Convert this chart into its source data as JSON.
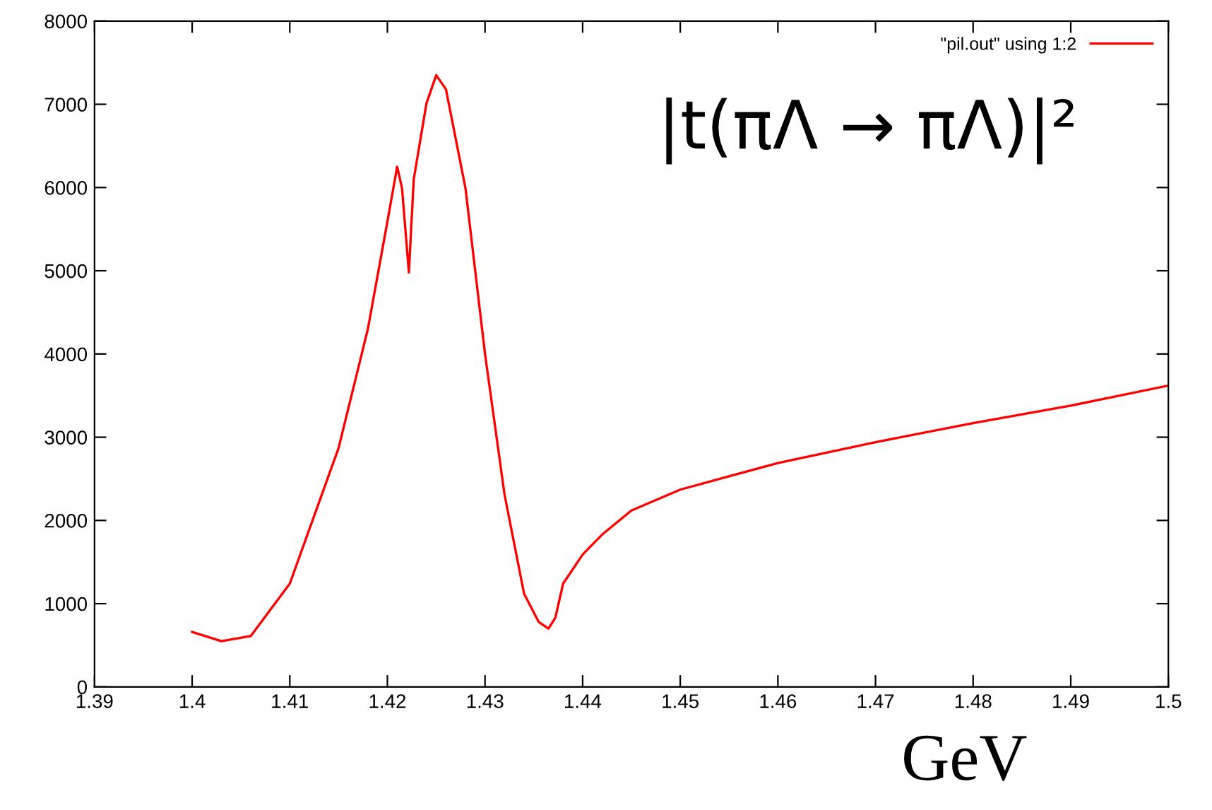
{
  "chart_data": {
    "type": "line",
    "xlabel": "GeV",
    "annotations": [
      "|t(πΛ → πΛ)|²"
    ],
    "series": [
      {
        "name": "\"pil.out\" using 1:2",
        "color": "#ff0000",
        "x": [
          1.4,
          1.403,
          1.406,
          1.41,
          1.415,
          1.418,
          1.42,
          1.421,
          1.4215,
          1.4222,
          1.4227,
          1.424,
          1.425,
          1.426,
          1.428,
          1.43,
          1.432,
          1.434,
          1.4355,
          1.4365,
          1.4372,
          1.438,
          1.44,
          1.442,
          1.445,
          1.45,
          1.46,
          1.47,
          1.48,
          1.49,
          1.5
        ],
        "values": [
          660,
          550,
          610,
          1240,
          2870,
          4300,
          5590,
          6250,
          5990,
          4980,
          6100,
          7010,
          7350,
          7180,
          5990,
          4000,
          2310,
          1120,
          780,
          700,
          830,
          1240,
          1590,
          1830,
          2120,
          2370,
          2690,
          2940,
          3170,
          3380,
          3620
        ]
      }
    ],
    "xlim": [
      1.39,
      1.5
    ],
    "ylim": [
      0,
      8000
    ],
    "xticks": [
      1.39,
      1.4,
      1.41,
      1.42,
      1.43,
      1.44,
      1.45,
      1.46,
      1.47,
      1.48,
      1.49,
      1.5
    ],
    "yticks": [
      0,
      1000,
      2000,
      3000,
      4000,
      5000,
      6000,
      7000,
      8000
    ],
    "grid": false,
    "legend": "top right",
    "marker": "none",
    "line_style": "solid"
  }
}
